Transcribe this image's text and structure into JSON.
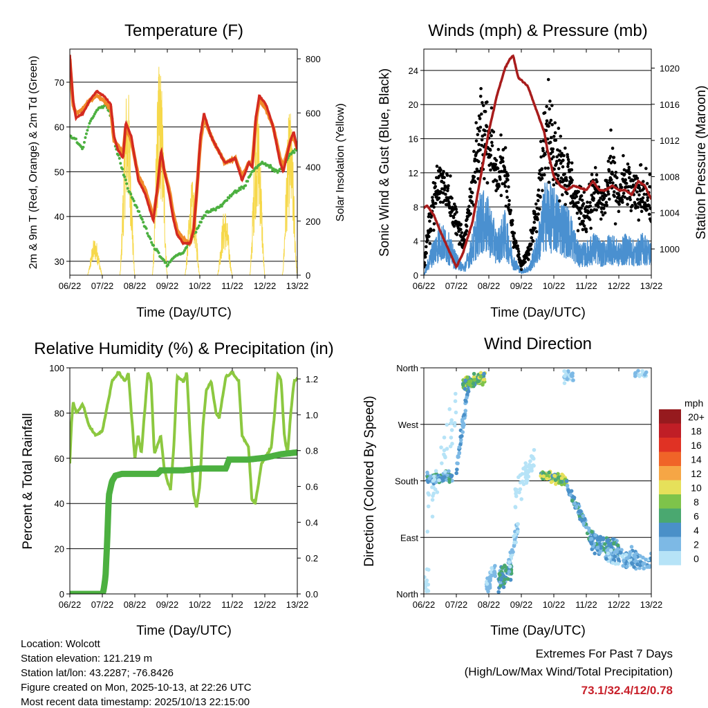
{
  "chart_data": [
    {
      "type": "line",
      "title": "Temperature (F)",
      "xlabel": "Time (Day/UTC)",
      "ylabel": "2m & 9m T (Red, Orange) & 2m Td (Green)",
      "ylabel_right": "Solar Insolation (Yellow)",
      "x_ticks": [
        "06/22",
        "07/22",
        "08/22",
        "09/22",
        "10/22",
        "11/22",
        "12/22",
        "13/22"
      ],
      "xlim_days": [
        0,
        7
      ],
      "ylim": [
        26.9,
        77.4
      ],
      "y_ticks": [
        30,
        40,
        50,
        60,
        70
      ],
      "ylim_right": [
        0,
        836
      ],
      "y_ticks_right": [
        0,
        200,
        400,
        600,
        800
      ],
      "grid": true,
      "series": [
        {
          "name": "2m T",
          "color": "#d42a20",
          "t": [
            0,
            0.1,
            0.19,
            0.4,
            0.62,
            0.83,
            1.04,
            1.26,
            1.36,
            1.47,
            1.64,
            1.72,
            1.89,
            2.11,
            2.32,
            2.53,
            2.57,
            2.7,
            2.81,
            2.91,
            3.06,
            3.17,
            3.3,
            3.49,
            3.7,
            3.81,
            3.91,
            4.02,
            4.13,
            4.34,
            4.55,
            4.77,
            5.09,
            5.3,
            5.51,
            5.62,
            5.72,
            5.83,
            6.04,
            6.26,
            6.47,
            6.57,
            6.79,
            6.89,
            7.0
          ],
          "values": [
            76,
            66,
            62,
            63,
            66,
            68,
            67,
            65,
            58,
            55,
            53,
            61,
            58,
            48,
            45,
            40,
            39,
            47,
            55,
            50,
            45,
            40,
            36,
            34,
            34,
            37,
            46,
            58,
            63,
            58,
            55,
            52,
            53,
            48,
            52,
            51,
            62,
            67,
            65,
            60,
            52,
            50,
            57,
            59,
            55
          ]
        },
        {
          "name": "9m T",
          "color": "#f08a2a",
          "t": [
            0,
            0.1,
            0.19,
            0.4,
            0.62,
            0.83,
            1.04,
            1.26,
            1.36,
            1.47,
            1.64,
            1.72,
            1.89,
            2.11,
            2.32,
            2.53,
            2.57,
            2.7,
            2.81,
            2.91,
            3.06,
            3.17,
            3.3,
            3.49,
            3.7,
            3.81,
            3.91,
            4.02,
            4.13,
            4.34,
            4.55,
            4.77,
            5.09,
            5.3,
            5.51,
            5.62,
            5.72,
            5.83,
            6.04,
            6.26,
            6.47,
            6.57,
            6.79,
            6.89,
            7.0
          ],
          "values": [
            75,
            65,
            63,
            64,
            66,
            67,
            66,
            64,
            57,
            56,
            54,
            60,
            57,
            49,
            46,
            41,
            40,
            46,
            54,
            50,
            46,
            41,
            37,
            35,
            34,
            37,
            46,
            57,
            62,
            58,
            55,
            52,
            53,
            49,
            52,
            52,
            61,
            66,
            64,
            60,
            53,
            51,
            57,
            58,
            55
          ]
        },
        {
          "name": "2m Td",
          "color": "#4cb040",
          "t": [
            0,
            0.2,
            0.4,
            0.6,
            0.85,
            1.1,
            1.3,
            1.4,
            1.6,
            1.8,
            2.0,
            2.3,
            2.6,
            2.9,
            3.0,
            3.2,
            3.5,
            3.9,
            4.2,
            4.6,
            5.0,
            5.4,
            5.6,
            5.9,
            6.2,
            6.4,
            6.6,
            6.8,
            7.0
          ],
          "values": [
            58,
            57,
            55,
            61,
            64,
            65,
            62,
            56,
            51,
            46,
            43,
            38,
            33,
            30,
            29,
            31,
            32,
            37,
            41,
            42,
            45,
            47,
            50,
            52,
            51,
            50,
            52,
            54,
            55
          ]
        },
        {
          "name": "Solar Insolation",
          "color": "#f6d84a",
          "axis": "right",
          "daily_peaks_t": [
            0.77,
            1.77,
            2.77,
            3.77,
            4.77,
            5.77,
            6.77
          ],
          "daily_peaks": [
            140,
            720,
            800,
            350,
            250,
            650,
            620
          ]
        }
      ]
    },
    {
      "type": "scatter",
      "title": "Winds (mph) & Pressure (mb)",
      "xlabel": "Time (Day/UTC)",
      "ylabel": "Sonic Wind & Gust (Blue, Black)",
      "ylabel_right": "Station Pressure (Maroon)",
      "x_ticks": [
        "06/22",
        "07/22",
        "08/22",
        "09/22",
        "10/22",
        "11/22",
        "12/22",
        "13/22"
      ],
      "xlim_days": [
        0,
        7
      ],
      "ylim": [
        0,
        26.5
      ],
      "y_ticks": [
        0,
        4,
        8,
        12,
        16,
        20,
        24
      ],
      "ylim_right": [
        997.1,
        1022.1
      ],
      "y_ticks_right": [
        1000,
        1004,
        1008,
        1012,
        1016,
        1020
      ],
      "grid": true,
      "series": [
        {
          "name": "Wind",
          "color": "#4a90d0",
          "t_step": 0.25,
          "values": [
            0,
            3,
            5,
            4,
            2,
            1,
            4,
            8,
            7,
            4,
            6,
            2,
            0.5,
            1,
            4,
            9,
            8,
            7,
            6,
            3,
            3,
            4,
            3,
            4,
            3,
            4,
            3,
            4,
            3
          ]
        },
        {
          "name": "Gust",
          "color": "#000000",
          "t_step": 0.25,
          "values": [
            1,
            8,
            11,
            10,
            6,
            4,
            10,
            17,
            16,
            12,
            12,
            5,
            1,
            3,
            9,
            17,
            15,
            13,
            11,
            8,
            7,
            10,
            8,
            12,
            9,
            11,
            9,
            10,
            8
          ]
        },
        {
          "name": "Station Pressure",
          "color": "#a81c1c",
          "axis": "right",
          "t": [
            0,
            0.1,
            0.3,
            0.5,
            0.75,
            1.0,
            1.2,
            1.5,
            1.75,
            2.0,
            2.25,
            2.5,
            2.65,
            2.75,
            2.9,
            3.2,
            3.5,
            3.7,
            3.8,
            4.0,
            4.2,
            4.4,
            4.6,
            5.0,
            5.2,
            5.4,
            5.6,
            5.8,
            6.0,
            6.2,
            6.4,
            6.6,
            6.8,
            7.0
          ],
          "values": [
            1004.5,
            1004.8,
            1003.8,
            1002,
            1000,
            998,
            999.5,
            1003,
            1008,
            1013,
            1017,
            1020,
            1021,
            1021.4,
            1019,
            1018,
            1015,
            1013,
            1011,
            1008,
            1007,
            1006.5,
            1007,
            1006.5,
            1007.5,
            1006.5,
            1006.5,
            1007,
            1006.5,
            1006.5,
            1006,
            1007.5,
            1007,
            1005.5
          ]
        }
      ]
    },
    {
      "type": "line",
      "title": "Relative Humidity (%) & Precipitation (in)",
      "xlabel": "Time (Day/UTC)",
      "ylabel": "Percent & Total Rainfall",
      "x_ticks": [
        "06/22",
        "07/22",
        "08/22",
        "09/22",
        "10/22",
        "11/22",
        "12/22",
        "13/22"
      ],
      "xlim_days": [
        0,
        7
      ],
      "ylim": [
        0,
        100
      ],
      "y_ticks": [
        0,
        20,
        40,
        60,
        80,
        100
      ],
      "ylim_right": [
        0,
        1.262
      ],
      "y_ticks_right": [
        "0.0",
        "0.2",
        "0.4",
        "0.6",
        "0.8",
        "1.0",
        "1.2"
      ],
      "grid": true,
      "series": [
        {
          "name": "Relative Humidity",
          "color": "#8cc840",
          "t": [
            0,
            0.05,
            0.1,
            0.2,
            0.4,
            0.6,
            0.8,
            1.0,
            1.3,
            1.5,
            1.7,
            1.8,
            2.0,
            2.1,
            2.2,
            2.4,
            2.5,
            2.6,
            2.8,
            2.9,
            3.0,
            3.1,
            3.2,
            3.3,
            3.5,
            3.6,
            3.7,
            3.8,
            3.9,
            4.0,
            4.1,
            4.2,
            4.35,
            4.5,
            4.6,
            4.8,
            5.0,
            5.2,
            5.3,
            5.5,
            5.6,
            5.7,
            5.8,
            5.9,
            6.0,
            6.2,
            6.3,
            6.4,
            6.5,
            6.6,
            6.7,
            6.8,
            6.9,
            7.0
          ],
          "values": [
            58,
            75,
            85,
            80,
            84,
            74,
            70,
            72,
            94,
            98,
            94,
            98,
            60,
            70,
            62,
            98,
            94,
            62,
            70,
            56,
            50,
            46,
            65,
            96,
            94,
            98,
            70,
            45,
            38,
            48,
            75,
            90,
            94,
            80,
            78,
            96,
            98,
            94,
            70,
            65,
            42,
            40,
            48,
            58,
            60,
            65,
            80,
            97,
            95,
            70,
            62,
            80,
            94,
            95
          ]
        },
        {
          "name": "Total Precipitation",
          "color": "#4cb040",
          "axis": "right",
          "t": [
            0,
            1.0,
            1.04,
            1.1,
            1.15,
            1.2,
            1.3,
            1.4,
            1.6,
            2.7,
            2.8,
            3.5,
            4.0,
            4.8,
            4.9,
            5.5,
            6.0,
            6.5,
            7.0
          ],
          "values": [
            0,
            0,
            0.02,
            0.1,
            0.3,
            0.55,
            0.63,
            0.66,
            0.67,
            0.67,
            0.69,
            0.69,
            0.7,
            0.7,
            0.75,
            0.75,
            0.76,
            0.78,
            0.79
          ]
        }
      ]
    },
    {
      "type": "scatter",
      "title": "Wind Direction",
      "xlabel": "Time (Day/UTC)",
      "ylabel": "Direction (Colored By Speed)",
      "x_ticks": [
        "06/22",
        "07/22",
        "08/22",
        "09/22",
        "10/22",
        "11/22",
        "12/22",
        "13/22"
      ],
      "xlim_days": [
        0,
        7
      ],
      "ylim": [
        0,
        360
      ],
      "y_ticks": [
        "North",
        "East",
        "South",
        "West",
        "North"
      ],
      "grid": true,
      "legend": {
        "title": "mph",
        "placement": "right",
        "labels": [
          "20+",
          "18",
          "16",
          "14",
          "12",
          "10",
          "8",
          "6",
          "4",
          "2",
          "0"
        ],
        "colors": [
          "#961a1e",
          "#c01e26",
          "#e03224",
          "#f06428",
          "#f6a645",
          "#e6e05a",
          "#7ec34a",
          "#4aa870",
          "#4a90c8",
          "#7db9e5",
          "#b6e3f7"
        ]
      },
      "clusters": [
        {
          "t": [
            0,
            0.15
          ],
          "dir": [
            10,
            20
          ],
          "spread": 30,
          "speed": [
            0,
            2
          ],
          "n": 15
        },
        {
          "t": [
            0.1,
            0.9
          ],
          "dir": [
            185,
            185
          ],
          "spread": 12,
          "speed": [
            2,
            7
          ],
          "n": 90
        },
        {
          "t": [
            0.1,
            1.0
          ],
          "dir": [
            120,
            300
          ],
          "spread": 60,
          "speed": [
            0,
            2
          ],
          "n": 40
        },
        {
          "t": [
            1.0,
            1.4
          ],
          "dir": [
            200,
            340
          ],
          "spread": 20,
          "speed": [
            2,
            5
          ],
          "n": 50
        },
        {
          "t": [
            1.2,
            1.9
          ],
          "dir": [
            335,
            345
          ],
          "spread": 15,
          "speed": [
            4,
            11
          ],
          "n": 110
        },
        {
          "t": [
            1.9,
            2.2
          ],
          "dir": [
            10,
            40
          ],
          "spread": 25,
          "speed": [
            1,
            4
          ],
          "n": 40
        },
        {
          "t": [
            2.3,
            2.7
          ],
          "dir": [
            20,
            40
          ],
          "spread": 25,
          "speed": [
            3,
            8
          ],
          "n": 70
        },
        {
          "t": [
            2.6,
            2.9
          ],
          "dir": [
            40,
            110
          ],
          "spread": 20,
          "speed": [
            1,
            4
          ],
          "n": 35
        },
        {
          "t": [
            2.8,
            3.4
          ],
          "dir": [
            150,
            220
          ],
          "spread": 30,
          "speed": [
            0,
            2
          ],
          "n": 50
        },
        {
          "t": [
            3.6,
            4.4
          ],
          "dir": [
            190,
            180
          ],
          "spread": 10,
          "speed": [
            5,
            12
          ],
          "n": 130
        },
        {
          "t": [
            4.4,
            5.0
          ],
          "dir": [
            170,
            110
          ],
          "spread": 12,
          "speed": [
            3,
            7
          ],
          "n": 70
        },
        {
          "t": [
            5.0,
            6.0
          ],
          "dir": [
            90,
            70
          ],
          "spread": 25,
          "speed": [
            2,
            7
          ],
          "n": 110
        },
        {
          "t": [
            5.6,
            7.0
          ],
          "dir": [
            60,
            50
          ],
          "spread": 25,
          "speed": [
            1,
            6
          ],
          "n": 110
        },
        {
          "t": [
            4.3,
            4.6
          ],
          "dir": [
            345,
            345
          ],
          "spread": 15,
          "speed": [
            1,
            3
          ],
          "n": 25
        },
        {
          "t": [
            6.5,
            6.9
          ],
          "dir": [
            350,
            350
          ],
          "spread": 10,
          "speed": [
            1,
            4
          ],
          "n": 20
        }
      ]
    }
  ],
  "info": {
    "location": "Location: Wolcott",
    "elevation": "Station elevation: 121.219 m",
    "latlon": "Station lat/lon: 43.2287; -76.8426",
    "created": "Figure created on Mon, 2025-10-13, at 22:26 UTC",
    "recent": "Most recent data timestamp: 2025/10/13 22:15:00"
  },
  "extremes": {
    "title": "Extremes For Past 7 Days",
    "subtitle": "(High/Low/Max Wind/Total Precipitation)",
    "values": "73.1/32.4/12/0.78"
  }
}
